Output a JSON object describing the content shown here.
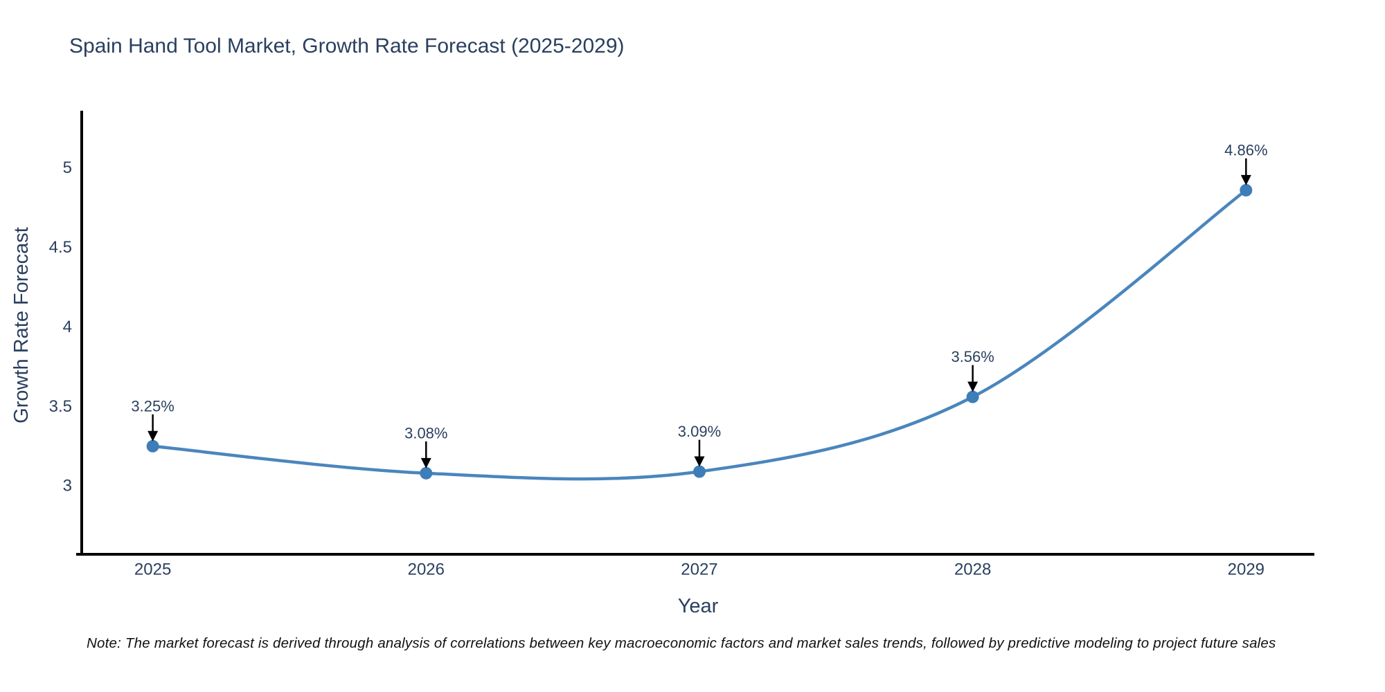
{
  "chart_data": {
    "type": "line",
    "title": "Spain Hand Tool Market, Growth Rate Forecast (2025-2029)",
    "xlabel": "Year",
    "ylabel": "Growth Rate Forecast",
    "x": [
      2025,
      2026,
      2027,
      2028,
      2029
    ],
    "values": [
      3.25,
      3.08,
      3.09,
      3.56,
      4.86
    ],
    "point_labels": [
      "3.25%",
      "3.08%",
      "3.09%",
      "3.56%",
      "4.86%"
    ],
    "series_name": "Growth Rate Forecast",
    "x_tick_labels": [
      "2025",
      "2026",
      "2027",
      "2028",
      "2029"
    ],
    "y_tick_labels": [
      "5",
      "4.5",
      "4",
      "3.5",
      "3"
    ],
    "y_tick_values": [
      5,
      4.5,
      4,
      3.5,
      3
    ],
    "xlim": [
      2024.74,
      2029.25
    ],
    "ylim": [
      2.57,
      5.36
    ],
    "grid": false,
    "legend": false,
    "line_shape": "spline",
    "annotation_style": "label with downward black arrow onto each marker",
    "colors": {
      "line": "#4a86bd",
      "marker": "#3d7db8",
      "text": "#2a3f5f",
      "axis": "#000000",
      "arrow": "#000000",
      "note_text": "#111111",
      "background": "#ffffff"
    },
    "note": "Note: The market forecast is derived through analysis of correlations between key macroeconomic factors and market sales trends, followed by predictive modeling to project future sales"
  }
}
